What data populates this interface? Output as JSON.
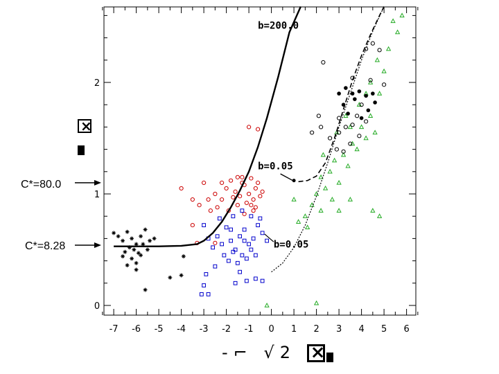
{
  "chart_data": {
    "type": "scatter",
    "title": "",
    "xlim": [
      -7.5,
      6.5
    ],
    "ylim": [
      -0.05,
      2.7
    ],
    "x_ticks": [
      -7,
      -6,
      -5,
      -4,
      -3,
      -2,
      -1,
      0,
      1,
      2,
      3,
      4,
      5,
      6
    ],
    "y_ticks": [
      0,
      1,
      2
    ],
    "xlabel_symbols": "-⌐ √2",
    "curve_labels": [
      "b=200.0",
      "b=0.05",
      "b=0.05"
    ],
    "side_labels": [
      {
        "text": "C*=80.0",
        "y": 1.1
      },
      {
        "text": "C*=8.28",
        "y": 0.54
      }
    ],
    "curves": [
      {
        "name": "b=200.0",
        "style": "solid-thick",
        "x": [
          -7.0,
          -5.0,
          -4.0,
          -3.3,
          -3.0,
          -2.6,
          -2.2,
          -1.8,
          -1.4,
          -1.0,
          -0.6,
          -0.2,
          0.3,
          0.8,
          1.3
        ],
        "y": [
          0.53,
          0.53,
          0.535,
          0.55,
          0.58,
          0.65,
          0.75,
          0.88,
          1.03,
          1.2,
          1.42,
          1.68,
          2.05,
          2.45,
          2.68
        ]
      },
      {
        "name": "b=0.05 (upper)",
        "style": "dashed",
        "x": [
          1.2,
          1.6,
          2.0,
          2.4,
          2.8,
          3.2,
          3.6,
          4.0,
          4.4,
          4.8,
          5.0
        ],
        "y": [
          1.11,
          1.12,
          1.16,
          1.28,
          1.5,
          1.76,
          2.02,
          2.24,
          2.43,
          2.6,
          2.68
        ]
      },
      {
        "name": "b=0.05 (lower)",
        "style": "dotted",
        "x": [
          0.0,
          0.5,
          1.0,
          1.5,
          2.0,
          2.5,
          3.0,
          3.5,
          4.0,
          4.5,
          5.0
        ],
        "y": [
          0.3,
          0.38,
          0.52,
          0.72,
          0.98,
          1.28,
          1.6,
          1.9,
          2.2,
          2.46,
          2.68
        ]
      }
    ],
    "series": [
      {
        "marker": "star",
        "color": "#000000",
        "points": [
          [
            -7.0,
            0.65
          ],
          [
            -6.8,
            0.62
          ],
          [
            -6.6,
            0.58
          ],
          [
            -6.4,
            0.66
          ],
          [
            -6.2,
            0.6
          ],
          [
            -6.0,
            0.55
          ],
          [
            -5.8,
            0.62
          ],
          [
            -5.6,
            0.68
          ],
          [
            -5.4,
            0.58
          ],
          [
            -5.2,
            0.6
          ],
          [
            -6.5,
            0.48
          ],
          [
            -6.2,
            0.42
          ],
          [
            -6.0,
            0.38
          ],
          [
            -5.8,
            0.45
          ],
          [
            -6.3,
            0.52
          ],
          [
            -6.1,
            0.5
          ],
          [
            -5.9,
            0.47
          ],
          [
            -6.6,
            0.44
          ],
          [
            -5.7,
            0.55
          ],
          [
            -6.4,
            0.36
          ],
          [
            -6.0,
            0.32
          ],
          [
            -5.5,
            0.5
          ],
          [
            -4.5,
            0.25
          ],
          [
            -5.6,
            0.14
          ],
          [
            -3.9,
            0.44
          ],
          [
            -4.0,
            0.27
          ]
        ]
      },
      {
        "marker": "circle-open",
        "color": "#cc0000",
        "points": [
          [
            -4.0,
            1.05
          ],
          [
            -3.5,
            0.95
          ],
          [
            -3.2,
            0.9
          ],
          [
            -3.0,
            1.1
          ],
          [
            -2.7,
            0.85
          ],
          [
            -2.5,
            1.0
          ],
          [
            -2.2,
            0.95
          ],
          [
            -2.0,
            1.05
          ],
          [
            -1.8,
            1.12
          ],
          [
            -1.6,
            1.02
          ],
          [
            -1.4,
            0.98
          ],
          [
            -1.2,
            1.08
          ],
          [
            -1.0,
            1.0
          ],
          [
            -0.9,
            1.14
          ],
          [
            -0.8,
            0.95
          ],
          [
            -0.7,
            1.05
          ],
          [
            -0.6,
            1.1
          ],
          [
            -0.5,
            0.98
          ],
          [
            -1.1,
            0.92
          ],
          [
            -1.3,
            1.15
          ],
          [
            -1.5,
            0.9
          ],
          [
            -1.7,
            0.97
          ],
          [
            -2.4,
            0.88
          ],
          [
            -2.8,
            0.95
          ],
          [
            -0.4,
            1.02
          ],
          [
            -0.9,
            0.9
          ],
          [
            -1.0,
            1.6
          ],
          [
            -0.6,
            1.58
          ],
          [
            -3.5,
            0.72
          ],
          [
            -3.3,
            0.56
          ],
          [
            -2.5,
            0.56
          ],
          [
            -1.2,
            0.82
          ],
          [
            -0.8,
            0.85
          ],
          [
            -1.9,
            0.85
          ],
          [
            -0.7,
            0.88
          ],
          [
            -1.5,
            1.15
          ],
          [
            -1.3,
            1.1
          ],
          [
            -2.2,
            1.1
          ]
        ]
      },
      {
        "marker": "square-open",
        "color": "#0000cc",
        "points": [
          [
            -3.0,
            0.72
          ],
          [
            -2.8,
            0.6
          ],
          [
            -2.6,
            0.52
          ],
          [
            -2.4,
            0.62
          ],
          [
            -2.2,
            0.55
          ],
          [
            -2.0,
            0.7
          ],
          [
            -1.8,
            0.58
          ],
          [
            -1.6,
            0.5
          ],
          [
            -1.4,
            0.62
          ],
          [
            -1.2,
            0.68
          ],
          [
            -1.0,
            0.55
          ],
          [
            -0.8,
            0.6
          ],
          [
            -0.6,
            0.72
          ],
          [
            -0.4,
            0.65
          ],
          [
            -0.2,
            0.58
          ],
          [
            -2.1,
            0.45
          ],
          [
            -1.9,
            0.4
          ],
          [
            -1.7,
            0.48
          ],
          [
            -1.5,
            0.38
          ],
          [
            -1.3,
            0.45
          ],
          [
            -1.1,
            0.42
          ],
          [
            -0.9,
            0.5
          ],
          [
            -0.7,
            0.45
          ],
          [
            -2.3,
            0.78
          ],
          [
            -1.7,
            0.8
          ],
          [
            -1.3,
            0.85
          ],
          [
            -0.9,
            0.8
          ],
          [
            -0.5,
            0.78
          ],
          [
            -2.9,
            0.28
          ],
          [
            -3.0,
            0.18
          ],
          [
            -3.1,
            0.1
          ],
          [
            -2.8,
            0.1
          ],
          [
            -1.6,
            0.2
          ],
          [
            -1.1,
            0.22
          ],
          [
            -0.7,
            0.24
          ],
          [
            -0.4,
            0.22
          ],
          [
            -1.4,
            0.3
          ],
          [
            -2.5,
            0.35
          ],
          [
            -1.8,
            0.68
          ],
          [
            -1.2,
            0.58
          ]
        ]
      },
      {
        "marker": "triangle-open",
        "color": "#22aa22",
        "points": [
          [
            1.0,
            0.95
          ],
          [
            1.5,
            0.8
          ],
          [
            1.8,
            0.9
          ],
          [
            2.0,
            1.0
          ],
          [
            2.2,
            1.15
          ],
          [
            2.4,
            1.05
          ],
          [
            2.6,
            1.2
          ],
          [
            2.8,
            1.3
          ],
          [
            3.0,
            1.1
          ],
          [
            3.2,
            1.35
          ],
          [
            3.4,
            1.25
          ],
          [
            3.6,
            1.45
          ],
          [
            3.8,
            1.4
          ],
          [
            4.0,
            1.6
          ],
          [
            4.2,
            1.5
          ],
          [
            4.4,
            1.7
          ],
          [
            4.6,
            1.55
          ],
          [
            4.8,
            1.9
          ],
          [
            5.0,
            2.1
          ],
          [
            5.2,
            2.3
          ],
          [
            5.4,
            2.55
          ],
          [
            5.6,
            2.45
          ],
          [
            5.8,
            2.6
          ],
          [
            4.4,
            2.0
          ],
          [
            4.7,
            2.2
          ],
          [
            3.9,
            1.8
          ],
          [
            4.2,
            1.9
          ],
          [
            3.5,
            1.6
          ],
          [
            2.7,
            0.95
          ],
          [
            2.2,
            0.85
          ],
          [
            3.0,
            0.85
          ],
          [
            3.5,
            0.95
          ],
          [
            4.5,
            0.85
          ],
          [
            1.2,
            0.75
          ],
          [
            1.6,
            0.7
          ],
          [
            2.0,
            0.02
          ],
          [
            4.8,
            0.8
          ],
          [
            2.3,
            1.35
          ],
          [
            2.9,
            1.55
          ],
          [
            3.3,
            1.7
          ],
          [
            -0.2,
            0.0
          ]
        ]
      },
      {
        "marker": "circle-open",
        "color": "#000000",
        "points": [
          [
            1.8,
            1.55
          ],
          [
            2.2,
            1.6
          ],
          [
            2.6,
            1.5
          ],
          [
            3.0,
            1.55
          ],
          [
            3.3,
            1.6
          ],
          [
            3.6,
            1.62
          ],
          [
            3.8,
            1.7
          ],
          [
            4.0,
            1.8
          ],
          [
            3.5,
            1.45
          ],
          [
            3.9,
            1.52
          ],
          [
            4.2,
            1.65
          ],
          [
            2.9,
            1.4
          ],
          [
            3.2,
            1.38
          ],
          [
            2.1,
            1.7
          ],
          [
            4.5,
            2.35
          ],
          [
            4.8,
            2.29
          ],
          [
            4.2,
            2.3
          ],
          [
            2.3,
            2.18
          ],
          [
            4.4,
            2.02
          ],
          [
            5.0,
            1.98
          ],
          [
            3.6,
            2.04
          ],
          [
            3.0,
            1.68
          ]
        ]
      },
      {
        "marker": "club-filled",
        "color": "#000000",
        "points": [
          [
            3.0,
            1.9
          ],
          [
            3.3,
            1.95
          ],
          [
            3.6,
            1.9
          ],
          [
            3.9,
            1.92
          ],
          [
            4.2,
            1.88
          ],
          [
            4.5,
            1.9
          ],
          [
            3.2,
            1.8
          ],
          [
            3.7,
            1.85
          ],
          [
            4.3,
            1.75
          ],
          [
            4.0,
            1.68
          ],
          [
            3.4,
            1.72
          ],
          [
            4.6,
            1.82
          ]
        ]
      }
    ]
  },
  "side_labels_text": [
    "C*=80.0",
    "C*=8.28"
  ]
}
